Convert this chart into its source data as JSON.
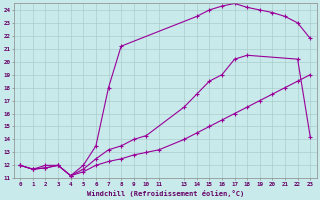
{
  "xlabel": "Windchill (Refroidissement éolien,°C)",
  "background_color": "#c8eaea",
  "line_color": "#990099",
  "grid_color": "#b0d8d8",
  "xlim": [
    -0.5,
    23.5
  ],
  "ylim": [
    11,
    24.5
  ],
  "xticks": [
    0,
    1,
    2,
    3,
    4,
    5,
    6,
    7,
    8,
    9,
    10,
    11,
    13,
    14,
    15,
    16,
    17,
    18,
    19,
    20,
    21,
    22,
    23
  ],
  "xtick_labels": [
    "0",
    "1",
    "2",
    "3",
    "4",
    "5",
    "6",
    "7",
    "8",
    "9",
    "10",
    "11",
    "13",
    "14",
    "15",
    "16",
    "17",
    "18",
    "19",
    "20",
    "21",
    "22",
    "23"
  ],
  "yticks": [
    11,
    12,
    13,
    14,
    15,
    16,
    17,
    18,
    19,
    20,
    21,
    22,
    23,
    24
  ],
  "curve1_x": [
    0,
    1,
    2,
    3,
    4,
    5,
    6,
    7,
    8,
    9,
    10,
    13,
    14,
    15,
    16,
    17,
    18,
    22,
    23
  ],
  "curve1_y": [
    12.0,
    11.7,
    12.0,
    12.0,
    11.2,
    11.7,
    12.5,
    13.2,
    13.5,
    14.0,
    14.3,
    16.5,
    17.5,
    18.5,
    19.0,
    20.2,
    20.5,
    20.2,
    14.2
  ],
  "curve2_x": [
    0,
    1,
    2,
    3,
    4,
    5,
    6,
    7,
    8,
    14,
    15,
    16,
    17,
    18,
    19,
    20,
    21,
    22,
    23
  ],
  "curve2_y": [
    12.0,
    11.7,
    11.8,
    12.0,
    11.2,
    12.0,
    13.5,
    18.0,
    21.2,
    23.5,
    24.0,
    24.3,
    24.5,
    24.2,
    24.0,
    23.8,
    23.5,
    23.0,
    21.8
  ],
  "curve3_x": [
    0,
    1,
    2,
    3,
    4,
    5,
    6,
    7,
    8,
    9,
    10,
    11,
    13,
    14,
    15,
    16,
    17,
    18,
    19,
    20,
    21,
    22,
    23
  ],
  "curve3_y": [
    12.0,
    11.7,
    11.8,
    12.0,
    11.2,
    11.5,
    12.0,
    12.3,
    12.5,
    12.8,
    13.0,
    13.2,
    14.0,
    14.5,
    15.0,
    15.5,
    16.0,
    16.5,
    17.0,
    17.5,
    18.0,
    18.5,
    19.0
  ]
}
